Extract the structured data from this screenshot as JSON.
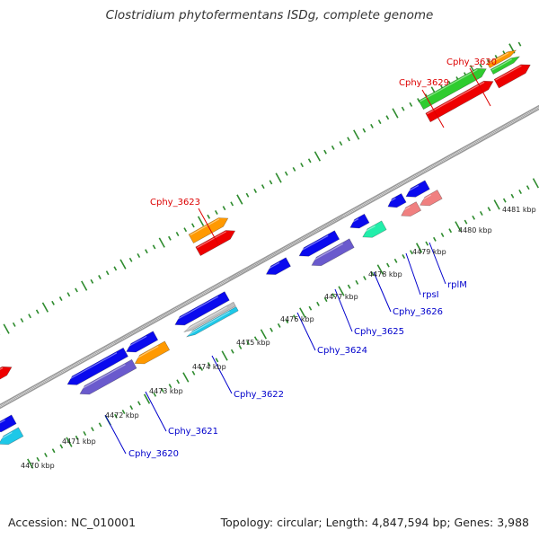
{
  "header": {
    "title": "Clostridium phytofermentans ISDg, complete genome"
  },
  "footer": {
    "accession": "Accession: NC_010001",
    "summary": "Topology: circular; Length: 4,847,594 bp; Genes: 3,988"
  },
  "colors": {
    "backbone": "#9a9a9a",
    "tick": "#2e8b2e",
    "forward_label": "#dd0000",
    "reverse_label": "#0000cc",
    "gene_blue": "#0a0aee",
    "gene_slate": "#6a5acd",
    "gene_green": "#2fcc2f",
    "gene_orange": "#ff9900",
    "gene_red": "#ee0000",
    "gene_pink": "#f08080",
    "gene_cyan": "#1ec8e8",
    "gene_teal": "#22eeaa"
  },
  "scale": {
    "unit": "kbp",
    "labels": [
      "4470 kbp",
      "4471 kbp",
      "4472 kbp",
      "4473 kbp",
      "4474 kbp",
      "4475 kbp",
      "4476 kbp",
      "4477 kbp",
      "4478 kbp",
      "4479 kbp",
      "4480 kbp",
      "4481 kbp"
    ]
  },
  "gene_labels": {
    "forward": [
      "Cphy_3623",
      "Cphy_3629",
      "Cphy_3630"
    ],
    "reverse": [
      "Cphy_3620",
      "Cphy_3621",
      "Cphy_3622",
      "Cphy_3624",
      "Cphy_3625",
      "Cphy_3626",
      "rpsI",
      "rplM"
    ]
  }
}
